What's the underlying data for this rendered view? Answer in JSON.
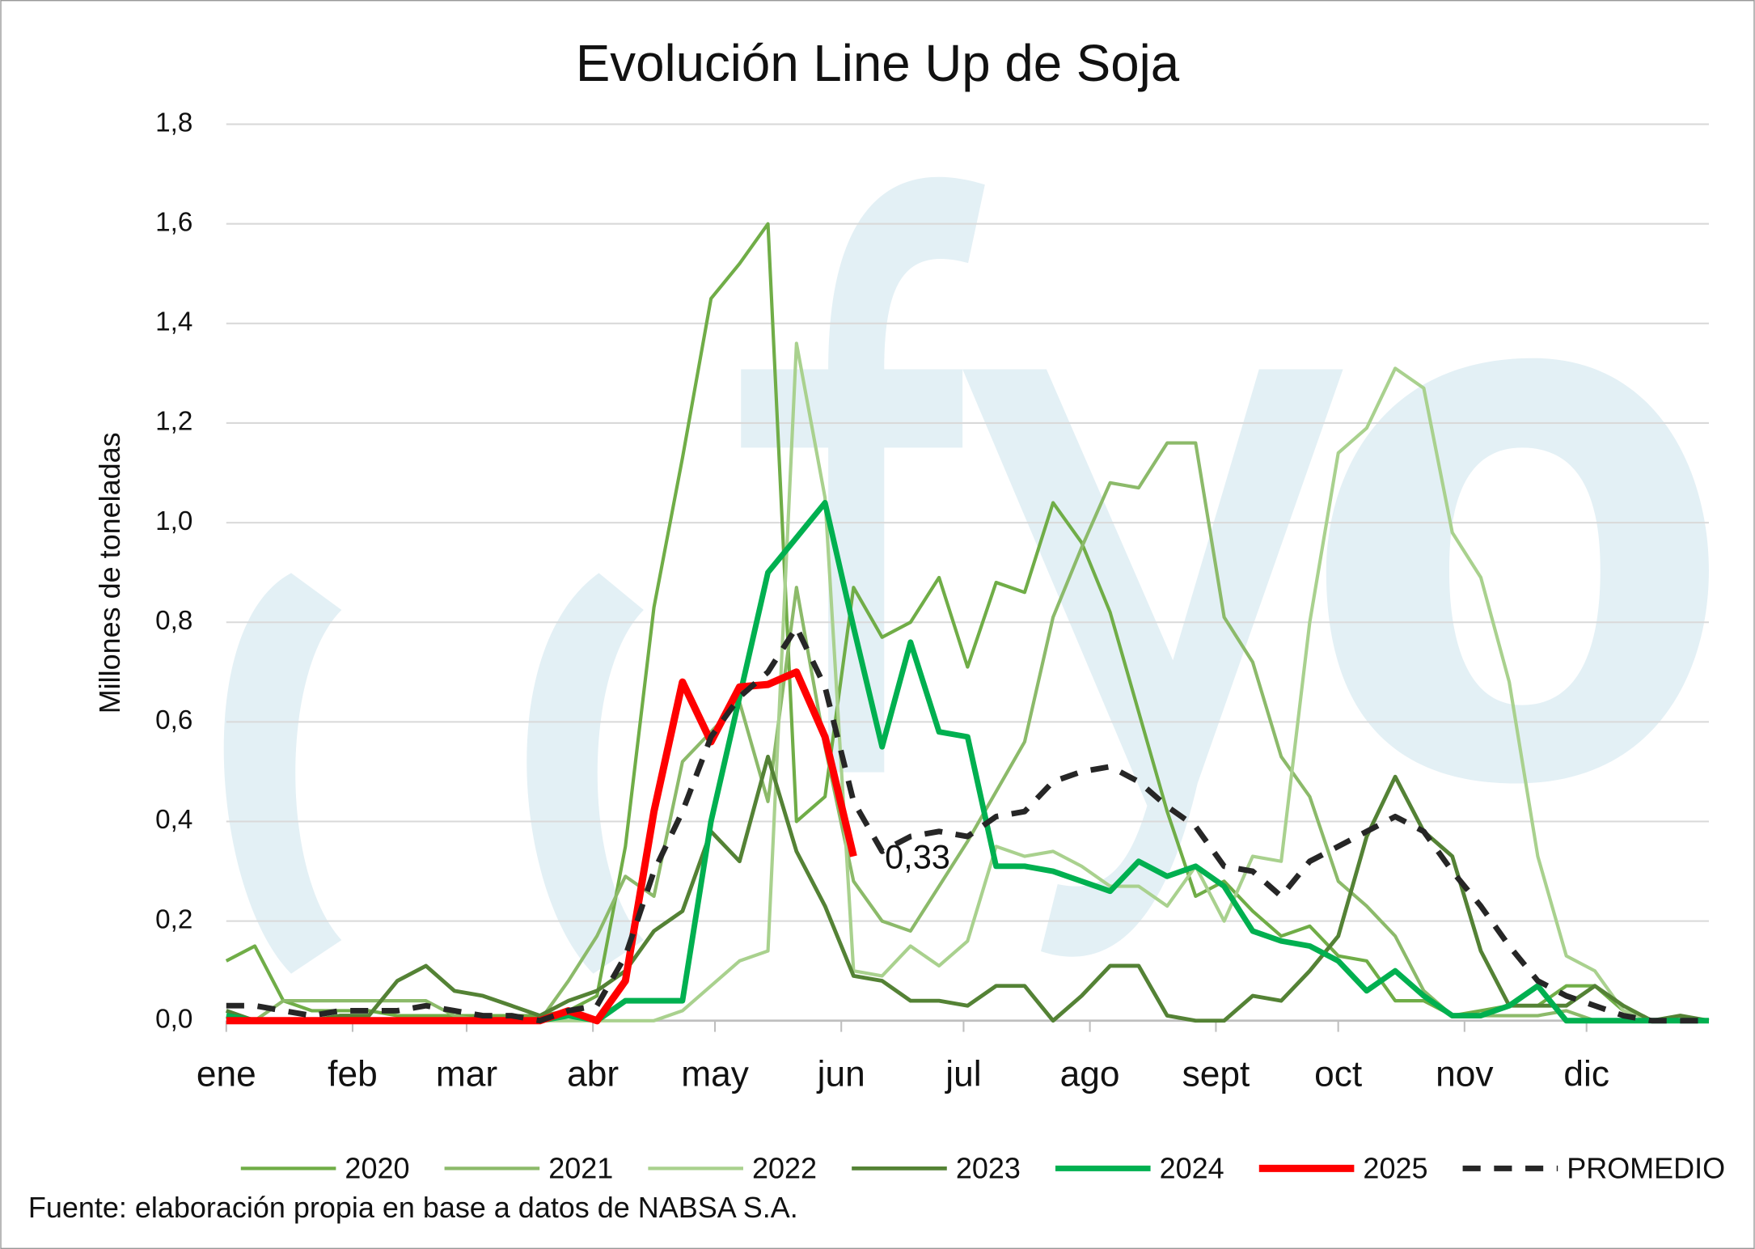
{
  "chart_data": {
    "type": "line",
    "title": "Evolución Line Up de Soja",
    "y_label": "Millones de toneladas",
    "source": "Fuente: elaboración propia en base a datos de NABSA S.A.",
    "x": [
      1,
      2,
      3,
      4,
      5,
      6,
      7,
      8,
      9,
      10,
      11,
      12,
      13,
      14,
      15,
      16,
      17,
      18,
      19,
      20,
      21,
      22,
      23,
      24,
      25,
      26,
      27,
      28,
      29,
      30,
      31,
      32,
      33,
      34,
      35,
      36,
      37,
      38,
      39,
      40,
      41,
      42,
      43,
      44,
      45,
      46,
      47,
      48,
      49,
      50,
      51,
      52,
      53
    ],
    "xlim": [
      1,
      53
    ],
    "xticks": [
      {
        "value": 1,
        "label": "ene"
      },
      {
        "value": 5.43,
        "label": "feb"
      },
      {
        "value": 9.43,
        "label": "mar"
      },
      {
        "value": 13.86,
        "label": "abr"
      },
      {
        "value": 18.14,
        "label": "may"
      },
      {
        "value": 22.57,
        "label": "jun"
      },
      {
        "value": 26.86,
        "label": "jul"
      },
      {
        "value": 31.29,
        "label": "ago"
      },
      {
        "value": 35.71,
        "label": "sept"
      },
      {
        "value": 40,
        "label": "oct"
      },
      {
        "value": 44.43,
        "label": "nov"
      },
      {
        "value": 48.71,
        "label": "dic"
      }
    ],
    "ylim": [
      0,
      1.8
    ],
    "yticks": [
      {
        "value": 0,
        "label": "0,0"
      },
      {
        "value": 0.2,
        "label": "0,2"
      },
      {
        "value": 0.4,
        "label": "0,4"
      },
      {
        "value": 0.6,
        "label": "0,6"
      },
      {
        "value": 0.8,
        "label": "0,8"
      },
      {
        "value": 1,
        "label": "1,0"
      },
      {
        "value": 1.2,
        "label": "1,2"
      },
      {
        "value": 1.4,
        "label": "1,4"
      },
      {
        "value": 1.6,
        "label": "1,6"
      },
      {
        "value": 1.8,
        "label": "1,8"
      }
    ],
    "grid": true,
    "legend": "bottom",
    "series": [
      {
        "name": "2020",
        "color": "#70ad47",
        "values": [
          0.12,
          0.15,
          0.04,
          0.02,
          0.02,
          0.02,
          0.01,
          0.01,
          0.01,
          0.01,
          0.01,
          0.01,
          0.02,
          0.05,
          0.35,
          0.83,
          1.13,
          1.45,
          1.52,
          1.6,
          0.4,
          0.45,
          0.87,
          0.77,
          0.8,
          0.89,
          0.71,
          0.88,
          0.86,
          1.04,
          0.96,
          0.82,
          0.62,
          0.42,
          0.25,
          0.28,
          0.22,
          0.17,
          0.19,
          0.13,
          0.12,
          0.04,
          0.04,
          0.01,
          0.02,
          0.03,
          0.03,
          0.07,
          0.07,
          0.02,
          0,
          0,
          0
        ]
      },
      {
        "name": "2021",
        "color": "#8cba6a",
        "values": [
          0.02,
          0,
          0.04,
          0.04,
          0.04,
          0.04,
          0.04,
          0.04,
          0.01,
          0,
          0,
          0,
          0.08,
          0.17,
          0.29,
          0.25,
          0.52,
          0.58,
          0.64,
          0.44,
          0.87,
          0.55,
          0.28,
          0.2,
          0.18,
          0.27,
          0.36,
          0.46,
          0.56,
          0.81,
          0.95,
          1.08,
          1.07,
          1.16,
          1.16,
          0.81,
          0.72,
          0.53,
          0.45,
          0.28,
          0.23,
          0.17,
          0.06,
          0.01,
          0.01,
          0.01,
          0.01,
          0.02,
          0,
          0,
          0,
          0,
          0
        ]
      },
      {
        "name": "2022",
        "color": "#a9d18e",
        "values": [
          0,
          0,
          0,
          0,
          0,
          0,
          0,
          0,
          0,
          0,
          0,
          0,
          0,
          0,
          0,
          0,
          0.02,
          0.07,
          0.12,
          0.14,
          1.36,
          1.05,
          0.1,
          0.09,
          0.15,
          0.11,
          0.16,
          0.35,
          0.33,
          0.34,
          0.31,
          0.27,
          0.27,
          0.23,
          0.31,
          0.2,
          0.33,
          0.32,
          0.8,
          1.14,
          1.19,
          1.31,
          1.27,
          0.98,
          0.89,
          0.68,
          0.33,
          0.13,
          0.1,
          0.02,
          0,
          0,
          0
        ]
      },
      {
        "name": "2023",
        "color": "#548235",
        "values": [
          0.02,
          0,
          0,
          0,
          0.01,
          0.01,
          0.08,
          0.11,
          0.06,
          0.05,
          0.03,
          0.01,
          0.04,
          0.06,
          0.1,
          0.18,
          0.22,
          0.38,
          0.32,
          0.53,
          0.34,
          0.23,
          0.09,
          0.08,
          0.04,
          0.04,
          0.03,
          0.07,
          0.07,
          0,
          0.05,
          0.11,
          0.11,
          0.01,
          0,
          0,
          0.05,
          0.04,
          0.1,
          0.17,
          0.37,
          0.49,
          0.38,
          0.33,
          0.14,
          0.03,
          0.03,
          0.03,
          0.07,
          0.03,
          0,
          0.01,
          0
        ]
      },
      {
        "name": "2024",
        "color": "#00b050",
        "values": [
          0.01,
          0,
          0,
          0,
          0,
          0,
          0,
          0,
          0,
          0,
          0,
          0,
          0.01,
          0,
          0.04,
          0.04,
          0.04,
          0.4,
          0.65,
          0.9,
          0.97,
          1.04,
          0.79,
          0.55,
          0.76,
          0.58,
          0.57,
          0.31,
          0.31,
          0.3,
          0.28,
          0.26,
          0.32,
          0.29,
          0.31,
          0.27,
          0.18,
          0.16,
          0.15,
          0.12,
          0.06,
          0.1,
          0.05,
          0.01,
          0.01,
          0.03,
          0.07,
          0,
          0,
          0,
          0,
          0,
          0
        ]
      },
      {
        "name": "2025",
        "color": "#ff0000",
        "values": [
          0,
          0,
          0,
          0,
          0,
          0,
          0,
          0,
          0,
          0,
          0,
          0,
          0.02,
          0,
          0.08,
          0.42,
          0.68,
          0.56,
          0.67,
          0.675,
          0.7,
          0.57,
          0.33,
          null,
          null,
          null,
          null,
          null,
          null,
          null,
          null,
          null,
          null,
          null,
          null,
          null,
          null,
          null,
          null,
          null,
          null,
          null,
          null,
          null,
          null,
          null,
          null,
          null,
          null,
          null,
          null,
          null,
          null
        ],
        "value_labels": [
          null,
          null,
          null,
          null,
          null,
          null,
          null,
          null,
          null,
          null,
          null,
          null,
          null,
          null,
          null,
          null,
          null,
          null,
          null,
          null,
          null,
          null,
          "0,33",
          null,
          null,
          null,
          null,
          null,
          null,
          null,
          null,
          null,
          null,
          null,
          null,
          null,
          null,
          null,
          null,
          null,
          null,
          null,
          null,
          null,
          null,
          null,
          null,
          null,
          null,
          null,
          null,
          null,
          null
        ]
      },
      {
        "name": "PROMEDIO",
        "color": "#262626",
        "dashed": true,
        "values": [
          0.03,
          0.03,
          0.02,
          0.01,
          0.02,
          0.02,
          0.02,
          0.03,
          0.02,
          0.01,
          0.01,
          0,
          0.02,
          0.03,
          0.13,
          0.3,
          0.42,
          0.57,
          0.65,
          0.7,
          0.79,
          0.67,
          0.44,
          0.34,
          0.37,
          0.38,
          0.37,
          0.41,
          0.42,
          0.48,
          0.5,
          0.51,
          0.48,
          0.43,
          0.39,
          0.31,
          0.3,
          0.25,
          0.32,
          0.35,
          0.38,
          0.41,
          0.38,
          0.3,
          0.23,
          0.15,
          0.08,
          0.05,
          0.03,
          0.01,
          0,
          0,
          0
        ]
      }
    ]
  }
}
